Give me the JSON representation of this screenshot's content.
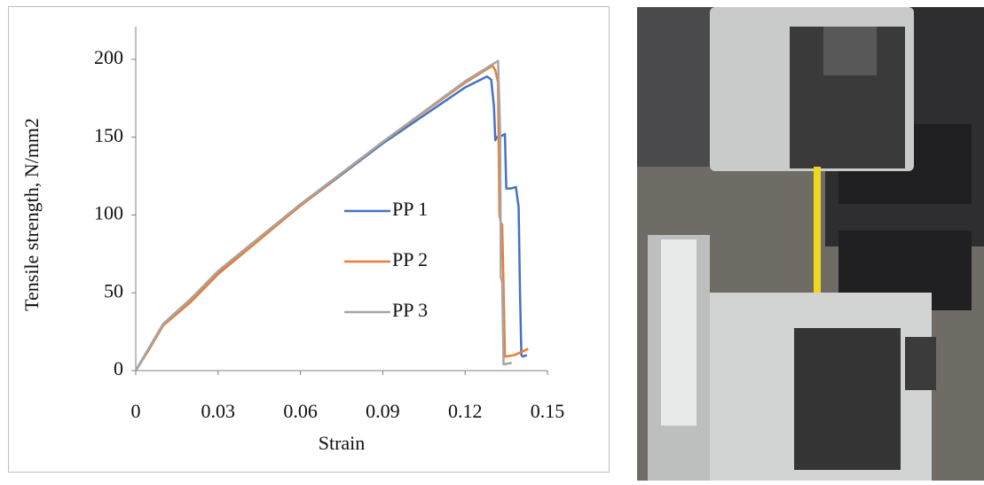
{
  "chart_data": {
    "type": "line",
    "x_label": "Strain",
    "y_label": "Tensile strength, N/mm2",
    "xlim": [
      0,
      0.15
    ],
    "ylim": [
      0,
      200
    ],
    "xticks": [
      0,
      0.03,
      0.06,
      0.09,
      0.12,
      0.15
    ],
    "yticks": [
      0,
      50,
      100,
      150,
      200
    ],
    "grid": false,
    "legend": "center",
    "series": [
      {
        "name": "PP 1",
        "color": "#4472c4",
        "x": [
          0,
          0.005,
          0.01,
          0.02,
          0.03,
          0.06,
          0.09,
          0.12,
          0.128,
          0.1295,
          0.1305,
          0.131,
          0.1315,
          0.1335,
          0.1345,
          0.135,
          0.1365,
          0.1385,
          0.1395,
          0.14,
          0.1405,
          0.141,
          0.1425
        ],
        "values": [
          0,
          15,
          30,
          46,
          63,
          106,
          146,
          182,
          189,
          187,
          170,
          148,
          150,
          151,
          152,
          117,
          117,
          118,
          105,
          50,
          10,
          9,
          10
        ]
      },
      {
        "name": "PP 2",
        "color": "#ed7d31",
        "x": [
          0,
          0.005,
          0.01,
          0.02,
          0.03,
          0.06,
          0.09,
          0.12,
          0.13,
          0.131,
          0.132,
          0.1325,
          0.133,
          0.1335,
          0.134,
          0.1345,
          0.138,
          0.143
        ],
        "values": [
          0,
          14,
          29,
          44,
          62,
          106,
          147,
          185,
          196,
          193,
          185,
          100,
          95,
          94,
          55,
          9,
          10,
          14
        ]
      },
      {
        "name": "PP 3",
        "color": "#a5a5a5",
        "x": [
          0,
          0.005,
          0.01,
          0.02,
          0.03,
          0.06,
          0.09,
          0.12,
          0.131,
          0.132,
          0.1325,
          0.1328,
          0.133,
          0.1335,
          0.134,
          0.137
        ],
        "values": [
          0,
          15,
          30,
          46,
          64,
          107,
          147,
          186,
          198,
          199,
          170,
          150,
          60,
          57,
          4,
          5
        ]
      }
    ]
  }
}
